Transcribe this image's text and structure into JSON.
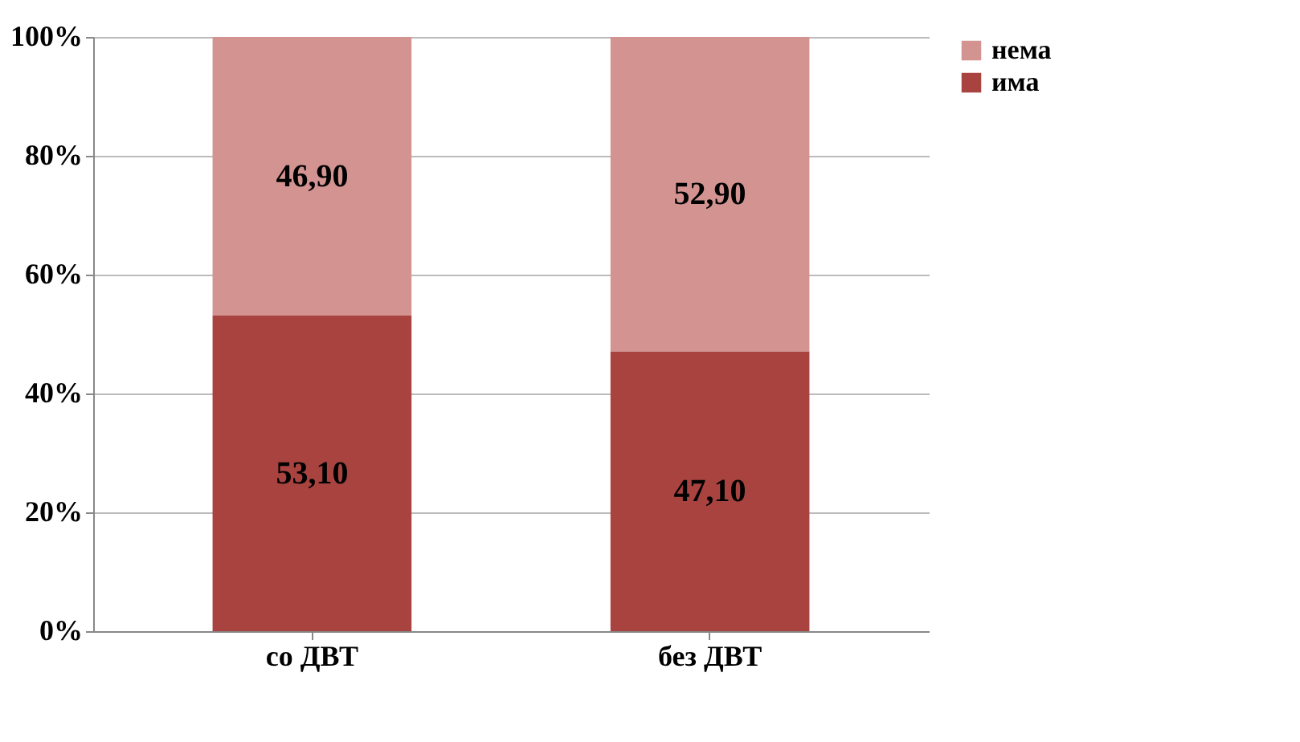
{
  "chart_data": {
    "type": "bar",
    "stacked": true,
    "categories": [
      "со ДВТ",
      "без ДВТ"
    ],
    "series": [
      {
        "name": "има",
        "color": "#a8433f",
        "values": [
          53.1,
          47.1
        ],
        "value_labels": [
          "53,10",
          "47,10"
        ]
      },
      {
        "name": "нема",
        "color": "#d39391",
        "values": [
          46.9,
          52.9
        ],
        "value_labels": [
          "46,90",
          "52,90"
        ]
      }
    ],
    "ylim": [
      0,
      100
    ],
    "yticks": [
      {
        "value": 0,
        "label": "0%"
      },
      {
        "value": 20,
        "label": "20%"
      },
      {
        "value": 40,
        "label": "40%"
      },
      {
        "value": 60,
        "label": "60%"
      },
      {
        "value": 80,
        "label": "80%"
      },
      {
        "value": 100,
        "label": "100%"
      }
    ],
    "grid": "y",
    "legend": "right"
  }
}
